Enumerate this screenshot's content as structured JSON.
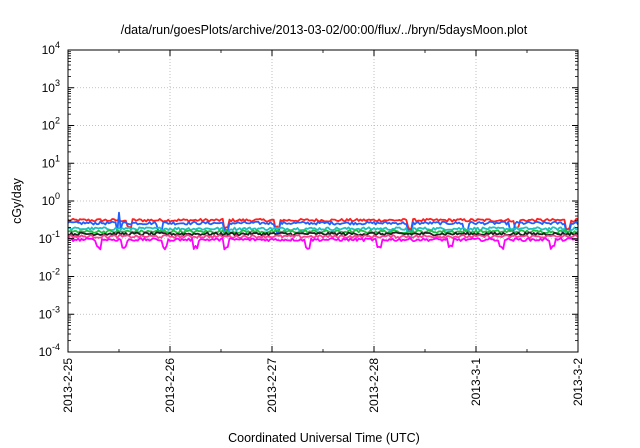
{
  "chart_data": {
    "type": "line",
    "title": "/data/run/goesPlots/archive/2013-03-02/00:00/flux/../bryn/5daysMoon.plot",
    "xlabel": "Coordinated Universal Time (UTC)",
    "ylabel": "cGy/day",
    "y_scale": "log",
    "ylim": [
      0.0001,
      10000
    ],
    "xlim": [
      "2013-02-25",
      "2013-03-02"
    ],
    "x_ticks": [
      "2013-2-25",
      "2013-2-26",
      "2013-2-27",
      "2013-2-28",
      "2013-3-1",
      "2013-3-2"
    ],
    "y_ticks": [
      {
        "base": "10",
        "exp": "4",
        "value": 10000
      },
      {
        "base": "10",
        "exp": "3",
        "value": 1000
      },
      {
        "base": "10",
        "exp": "2",
        "value": 100
      },
      {
        "base": "10",
        "exp": "1",
        "value": 10
      },
      {
        "base": "10",
        "exp": "0",
        "value": 1
      },
      {
        "base": "10",
        "exp": "-1",
        "value": 0.1
      },
      {
        "base": "10",
        "exp": "-2",
        "value": 0.01
      },
      {
        "base": "10",
        "exp": "-3",
        "value": 0.001
      },
      {
        "base": "10",
        "exp": "-4",
        "value": 0.0001
      }
    ],
    "grid": true,
    "series": [
      {
        "color": "#ff2020",
        "level": 0.31,
        "dips": [
          0.6,
          1.55,
          2.05,
          3.35,
          4.4,
          4.9
        ]
      },
      {
        "color": "#2060ff",
        "level": 0.26,
        "dips": [
          0.5,
          0.9,
          1.55,
          2.05,
          3.35,
          3.9,
          4.35,
          4.9
        ],
        "spikes": [
          0.5
        ]
      },
      {
        "color": "#20c0c0",
        "level": 0.185,
        "dips": [
          1.55,
          3.35,
          4.9
        ]
      },
      {
        "color": "#20c040",
        "level": 0.155
      },
      {
        "color": "#202020",
        "level": 0.135
      },
      {
        "color": "#ff4090",
        "level": 0.115
      },
      {
        "color": "#ff00ff",
        "level": 0.095,
        "dips": [
          0.3,
          0.55,
          0.95,
          1.25,
          1.55,
          2.35,
          3.05,
          3.75,
          4.25,
          4.75
        ]
      }
    ]
  }
}
